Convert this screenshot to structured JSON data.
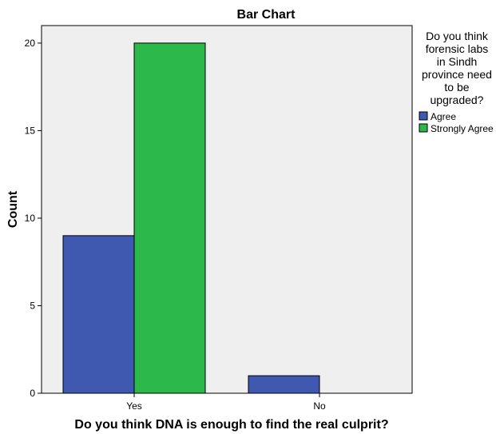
{
  "chart_data": {
    "type": "bar",
    "title": "Bar Chart",
    "xlabel": "Do you think DNA is enough to find the real culprit?",
    "ylabel": "Count",
    "categories": [
      "Yes",
      "No"
    ],
    "ylim": [
      0,
      21
    ],
    "yticks": [
      0,
      5,
      10,
      15,
      20
    ],
    "grid": false,
    "legend_position": "right",
    "legend_title": [
      "Do you think",
      "forensic labs",
      "in Sindh",
      "province need",
      "to be",
      "upgraded?"
    ],
    "series": [
      {
        "name": "Agree",
        "color": "#3f58b0",
        "values": [
          9,
          1
        ]
      },
      {
        "name": "Strongly Agree",
        "color": "#2db84b",
        "values": [
          20,
          0
        ]
      }
    ],
    "plot_background": "#efefef"
  }
}
